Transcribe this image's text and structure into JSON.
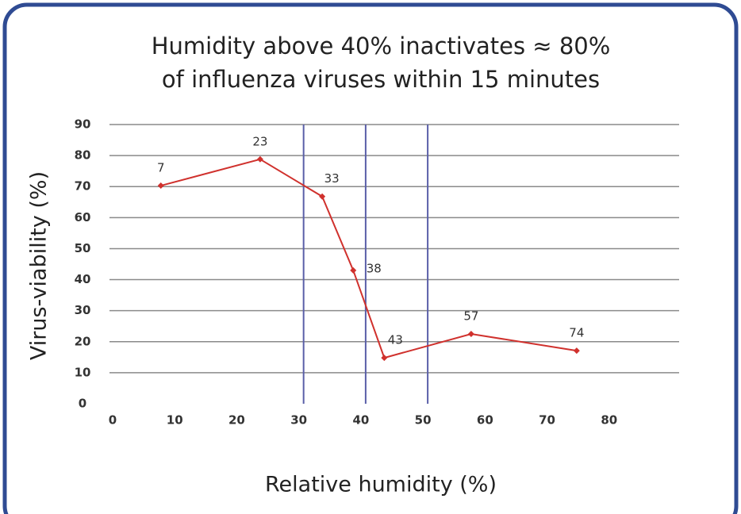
{
  "chart_data": {
    "type": "line",
    "title": [
      "Humidity above 40% inactivates ≈ 80%",
      "of influenza viruses within 15 minutes"
    ],
    "x_label": "Relative humidity (%)",
    "y_label": "Virus-viability (%)",
    "x": [
      7,
      23,
      33,
      38,
      43,
      57,
      74
    ],
    "series": [
      {
        "color": "#d0312d",
        "values": [
          70.3,
          78.8,
          66.8,
          43,
          14.8,
          22.5,
          17.1
        ]
      }
    ],
    "xlim": [
      0,
      90
    ],
    "xticks": [
      0,
      10,
      20,
      30,
      40,
      50,
      60,
      70,
      80
    ],
    "ylim": [
      0,
      90
    ],
    "yticks": [
      0,
      10,
      20,
      30,
      40,
      50,
      60,
      70,
      80,
      90
    ],
    "grid": true,
    "vlines": [
      30,
      40,
      50
    ],
    "vline_color": "#5a5fa8"
  }
}
